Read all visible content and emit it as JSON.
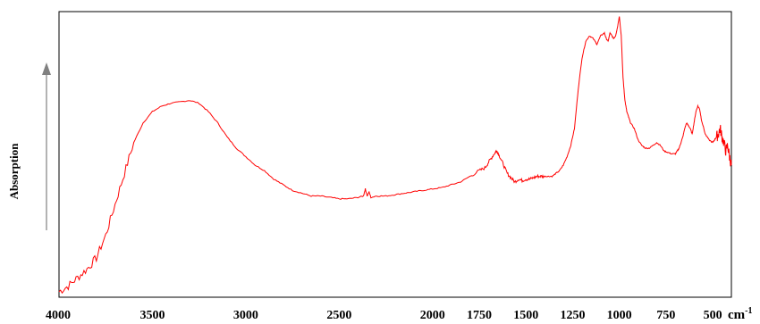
{
  "chart_data": {
    "type": "line",
    "title": "",
    "xlabel": "cm-1",
    "xlabel_base": "cm",
    "xlabel_exp": "-1",
    "ylabel": "Absorption",
    "x_reversed": true,
    "xlim": [
      4000,
      400
    ],
    "ylim": [
      0,
      1
    ],
    "y_ticks_shown": false,
    "grid": false,
    "line_color": "#ff0000",
    "x_ticks": [
      {
        "value": 4000,
        "label": "4000"
      },
      {
        "value": 3500,
        "label": "3500"
      },
      {
        "value": 3000,
        "label": "3000"
      },
      {
        "value": 2500,
        "label": "2500"
      },
      {
        "value": 2000,
        "label": "2000"
      },
      {
        "value": 1750,
        "label": "1750"
      },
      {
        "value": 1500,
        "label": "1500"
      },
      {
        "value": 1250,
        "label": "1250"
      },
      {
        "value": 1000,
        "label": "1000"
      },
      {
        "value": 750,
        "label": "750"
      },
      {
        "value": 500,
        "label": "500"
      }
    ],
    "series": [
      {
        "x": [
          4000,
          3950,
          3900,
          3850,
          3800,
          3750,
          3700,
          3650,
          3600,
          3550,
          3500,
          3450,
          3400,
          3350,
          3300,
          3250,
          3200,
          3150,
          3100,
          3050,
          3000,
          2950,
          2900,
          2850,
          2800,
          2750,
          2700,
          2650,
          2600,
          2550,
          2500,
          2450,
          2400,
          2370,
          2360,
          2350,
          2340,
          2330,
          2300,
          2250,
          2200,
          2150,
          2100,
          2050,
          2000,
          1950,
          1900,
          1850,
          1800,
          1750,
          1720,
          1700,
          1680,
          1660,
          1650,
          1640,
          1620,
          1600,
          1580,
          1560,
          1540,
          1520,
          1500,
          1480,
          1460,
          1440,
          1420,
          1400,
          1380,
          1360,
          1340,
          1320,
          1300,
          1280,
          1260,
          1240,
          1220,
          1200,
          1180,
          1160,
          1140,
          1120,
          1100,
          1080,
          1070,
          1060,
          1050,
          1040,
          1030,
          1020,
          1010,
          1000,
          990,
          980,
          970,
          960,
          950,
          940,
          920,
          900,
          880,
          860,
          840,
          820,
          800,
          780,
          760,
          740,
          720,
          700,
          690,
          680,
          670,
          660,
          650,
          640,
          630,
          620,
          610,
          600,
          590,
          580,
          570,
          560,
          540,
          520,
          500,
          490,
          480,
          470,
          460,
          450,
          440,
          430,
          420,
          410,
          400
        ],
        "y": [
          0.02,
          0.04,
          0.07,
          0.1,
          0.14,
          0.22,
          0.33,
          0.44,
          0.55,
          0.62,
          0.66,
          0.68,
          0.69,
          0.695,
          0.7,
          0.69,
          0.66,
          0.62,
          0.57,
          0.53,
          0.5,
          0.47,
          0.45,
          0.42,
          0.4,
          0.38,
          0.37,
          0.36,
          0.36,
          0.355,
          0.35,
          0.35,
          0.355,
          0.36,
          0.385,
          0.36,
          0.375,
          0.355,
          0.36,
          0.36,
          0.365,
          0.37,
          0.375,
          0.38,
          0.385,
          0.39,
          0.4,
          0.41,
          0.43,
          0.45,
          0.46,
          0.48,
          0.5,
          0.52,
          0.515,
          0.5,
          0.47,
          0.44,
          0.425,
          0.41,
          0.42,
          0.415,
          0.42,
          0.42,
          0.425,
          0.43,
          0.43,
          0.43,
          0.43,
          0.43,
          0.44,
          0.45,
          0.47,
          0.5,
          0.54,
          0.6,
          0.74,
          0.85,
          0.91,
          0.93,
          0.92,
          0.9,
          0.93,
          0.94,
          0.92,
          0.91,
          0.94,
          0.93,
          0.92,
          0.93,
          0.96,
          1.0,
          0.93,
          0.78,
          0.7,
          0.66,
          0.64,
          0.62,
          0.6,
          0.56,
          0.54,
          0.53,
          0.53,
          0.54,
          0.55,
          0.54,
          0.52,
          0.515,
          0.51,
          0.51,
          0.52,
          0.53,
          0.55,
          0.57,
          0.6,
          0.62,
          0.61,
          0.6,
          0.58,
          0.62,
          0.66,
          0.68,
          0.67,
          0.63,
          0.58,
          0.56,
          0.55,
          0.56,
          0.57,
          0.58,
          0.6,
          0.57,
          0.55,
          0.52,
          0.54,
          0.5,
          0.47
        ]
      }
    ]
  }
}
